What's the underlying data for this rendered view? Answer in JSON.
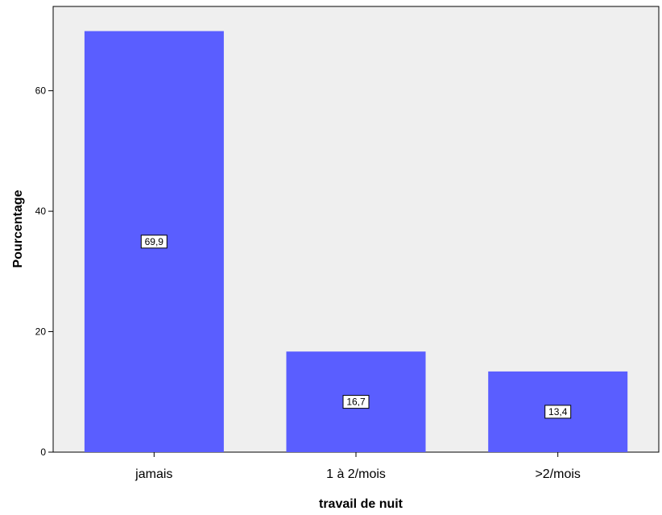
{
  "chart_data": {
    "type": "bar",
    "categories": [
      "jamais",
      "1 à 2/mois",
      ">2/mois"
    ],
    "values": [
      69.9,
      16.7,
      13.4
    ],
    "data_labels": [
      "69,9",
      "16,7",
      "13,4"
    ],
    "xlabel": "travail de nuit",
    "ylabel": "Pourcentage",
    "ylim": [
      0,
      74
    ],
    "yticks": [
      0,
      20,
      40,
      60
    ],
    "grid": false,
    "legend": "none",
    "colors": {
      "bar": "#5a5eff",
      "plot_background": "#efefef",
      "axis": "#000000",
      "label_box": "#ffffff"
    }
  }
}
